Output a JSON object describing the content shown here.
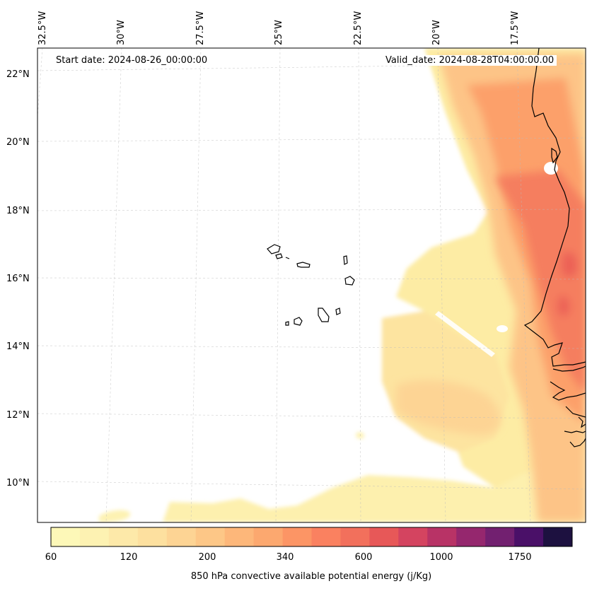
{
  "map": {
    "start_date_label": "Start date: 2024-08-26_00:00:00",
    "valid_date_label": "Valid_date: 2024-08-28T04:00:00.00",
    "longitude_labels": [
      "32.5°W",
      "30°W",
      "27.5°W",
      "25°W",
      "22.5°W",
      "20°W",
      "17.5°W"
    ],
    "latitude_labels": [
      "22°N",
      "20°N",
      "18°N",
      "16°N",
      "14°N",
      "12°N",
      "10°N"
    ],
    "features": [
      "Cabo Verde islands",
      "West African coastline"
    ]
  },
  "colorbar": {
    "title": "850 hPa convective available potential energy (j/Kg)",
    "tick_labels": [
      "60",
      "120",
      "200",
      "340",
      "600",
      "1000",
      "1750"
    ],
    "colors": [
      "#fdf8b8",
      "#fdf2b2",
      "#fde9a9",
      "#fde09f",
      "#fdd494",
      "#fdc787",
      "#fdb77a",
      "#fca86f",
      "#fc9565",
      "#fa8160",
      "#f2705c",
      "#e75858",
      "#d44460",
      "#b83366",
      "#95276e",
      "#722070",
      "#4a1068",
      "#1d1140"
    ]
  }
}
